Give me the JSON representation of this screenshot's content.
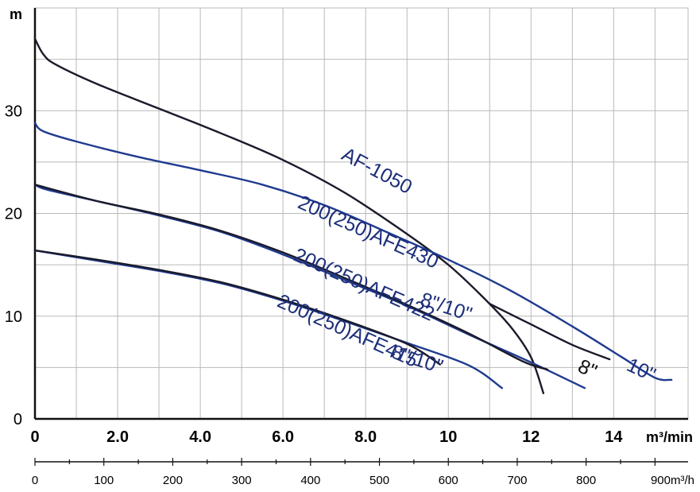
{
  "chart_data": {
    "type": "line",
    "title": "",
    "ylabel": "m",
    "xlabel": "m³/min",
    "xlabel_secondary": "900m³/h",
    "xlim": [
      0,
      15.8
    ],
    "ylim": [
      0,
      40
    ],
    "x_ticks": [
      "0",
      "2.0",
      "4.0",
      "6.0",
      "8.0",
      "10",
      "12",
      "14"
    ],
    "x_tick_values": [
      0,
      2,
      4,
      6,
      8,
      10,
      12,
      14
    ],
    "y_ticks": [
      "0",
      "10",
      "20",
      "30"
    ],
    "y_tick_values": [
      0,
      10,
      20,
      30
    ],
    "secondary_ticks": [
      "0",
      "100",
      "200",
      "300",
      "400",
      "500",
      "600",
      "700",
      "800"
    ],
    "secondary_tick_values": [
      0,
      100,
      200,
      300,
      400,
      500,
      600,
      700,
      800
    ],
    "grid": true,
    "series": [
      {
        "name": "AF-1050",
        "color": "#1a1a2a",
        "points": [
          [
            0,
            37.0
          ],
          [
            0.2,
            35.5
          ],
          [
            0.5,
            34.5
          ],
          [
            1.5,
            32.6
          ],
          [
            3.0,
            30.2
          ],
          [
            4.5,
            27.8
          ],
          [
            6.0,
            25.2
          ],
          [
            7.5,
            22.0
          ],
          [
            9.0,
            18.0
          ],
          [
            10.0,
            15.0
          ],
          [
            10.8,
            12.0
          ],
          [
            11.5,
            9.0
          ],
          [
            12.0,
            6.0
          ],
          [
            12.3,
            2.5
          ]
        ]
      },
      {
        "name": "200(250)AFE430",
        "color": "#1f3a8f",
        "points": [
          [
            0,
            28.8
          ],
          [
            0.2,
            28.0
          ],
          [
            1.0,
            27.0
          ],
          [
            2.5,
            25.5
          ],
          [
            4.0,
            24.2
          ],
          [
            5.5,
            22.8
          ],
          [
            7.0,
            20.8
          ],
          [
            8.5,
            18.2
          ],
          [
            10.0,
            15.5
          ],
          [
            11.5,
            12.5
          ],
          [
            13.0,
            9.0
          ],
          [
            14.2,
            6.0
          ],
          [
            15.0,
            4.0
          ],
          [
            15.4,
            3.8
          ]
        ]
      },
      {
        "name": "200(250)AFE430 8\"",
        "color": "#1a1a2a",
        "points": [
          [
            11.0,
            11.2
          ],
          [
            12.0,
            9.2
          ],
          [
            13.0,
            7.2
          ],
          [
            13.9,
            5.8
          ]
        ]
      },
      {
        "name": "200(250)AFE422",
        "color": "#1f3a8f",
        "points": [
          [
            0,
            22.8
          ],
          [
            0.3,
            22.3
          ],
          [
            1.5,
            21.2
          ],
          [
            3.0,
            19.8
          ],
          [
            4.5,
            18.2
          ],
          [
            6.0,
            16.0
          ],
          [
            7.5,
            13.5
          ],
          [
            9.0,
            11.0
          ],
          [
            10.5,
            8.2
          ],
          [
            12.0,
            5.5
          ],
          [
            13.3,
            3.0
          ]
        ]
      },
      {
        "name": "200(250)AFE422 8\"/10\"",
        "color": "#1a1a2a",
        "points": [
          [
            0,
            22.8
          ],
          [
            1.5,
            21.2
          ],
          [
            3.0,
            19.9
          ],
          [
            4.5,
            18.3
          ],
          [
            6.0,
            16.2
          ],
          [
            7.5,
            13.7
          ],
          [
            9.0,
            11.1
          ],
          [
            10.5,
            8.3
          ],
          [
            11.8,
            5.6
          ],
          [
            12.4,
            4.8
          ]
        ]
      },
      {
        "name": "200(250)AFE415",
        "color": "#1f3a8f",
        "points": [
          [
            0,
            16.4
          ],
          [
            1.5,
            15.4
          ],
          [
            3.0,
            14.4
          ],
          [
            4.5,
            13.2
          ],
          [
            6.0,
            11.5
          ],
          [
            7.5,
            9.5
          ],
          [
            9.0,
            7.4
          ],
          [
            10.5,
            5.2
          ],
          [
            11.3,
            3.0
          ]
        ]
      },
      {
        "name": "200(250)AFE415 8\"/10\"",
        "color": "#1a1a2a",
        "points": [
          [
            0,
            16.4
          ],
          [
            1.5,
            15.5
          ],
          [
            3.0,
            14.5
          ],
          [
            4.5,
            13.3
          ],
          [
            6.0,
            11.6
          ],
          [
            7.5,
            9.6
          ],
          [
            9.0,
            7.3
          ],
          [
            9.8,
            5.3
          ]
        ]
      }
    ],
    "annotations": [
      {
        "text": "AF-1050",
        "x": 8.2,
        "y": 23.6,
        "angle": 28,
        "color": "#1c2e7a"
      },
      {
        "text": "200(250)AFE430",
        "x": 8.0,
        "y": 17.6,
        "angle": 24,
        "color": "#1c2e7a"
      },
      {
        "text": "200(250)AFE422",
        "x": 7.9,
        "y": 12.5,
        "angle": 24,
        "color": "#1c2e7a"
      },
      {
        "text": "8\"/10\"",
        "x": 9.9,
        "y": 10.3,
        "angle": 18,
        "color": "#1c2e7a"
      },
      {
        "text": "200(250)AFE415",
        "x": 7.5,
        "y": 8.0,
        "angle": 24,
        "color": "#1c2e7a"
      },
      {
        "text": "8\"/10\"",
        "x": 9.2,
        "y": 5.2,
        "angle": 18,
        "color": "#1c2e7a"
      },
      {
        "text": "8\"",
        "x": 13.3,
        "y": 4.3,
        "angle": 25,
        "color": "#111111"
      },
      {
        "text": "10\"",
        "x": 14.6,
        "y": 4.2,
        "angle": 25,
        "color": "#1c2e7a"
      }
    ]
  }
}
